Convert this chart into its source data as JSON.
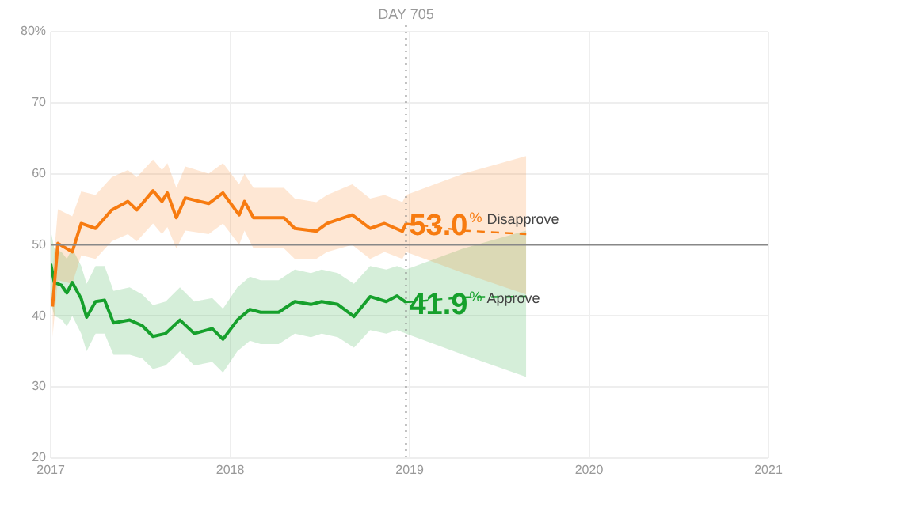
{
  "chart_data": {
    "type": "line",
    "xlim": [
      2017,
      2021
    ],
    "xticks": [
      2017,
      2018,
      2019,
      2020,
      2021
    ],
    "ylim": [
      20,
      80
    ],
    "yticks": [
      20,
      30,
      40,
      50,
      60,
      70,
      {
        "value": 80,
        "label": "80%"
      }
    ],
    "grid": true,
    "legend": false,
    "marker": "none",
    "ref_lines": [
      {
        "axis": "y",
        "value": 50,
        "color": "#888888",
        "line_style": "solid"
      },
      {
        "axis": "x",
        "value": 2018.98,
        "label": "DAY 705",
        "color": "#888888",
        "line_style": "dotted"
      }
    ],
    "annotations": [
      {
        "text": "53.0%",
        "x": 2018.98,
        "y": 53.0
      },
      {
        "text": "41.9%",
        "x": 2018.98,
        "y": 41.9
      }
    ],
    "series": [
      {
        "name": "Disapprove",
        "color": "#f77b10",
        "line_style": "solid",
        "x": [
          2017.01,
          2017.04,
          2017.12,
          2017.17,
          2017.25,
          2017.34,
          2017.43,
          2017.48,
          2017.57,
          2017.62,
          2017.65,
          2017.7,
          2017.75,
          2017.88,
          2017.96,
          2018.05,
          2018.08,
          2018.13,
          2018.21,
          2018.3,
          2018.36,
          2018.48,
          2018.54,
          2018.68,
          2018.78,
          2018.86,
          2018.96,
          2018.98
        ],
        "values": [
          41.3,
          50.2,
          49.0,
          53.0,
          52.3,
          54.9,
          56.1,
          54.9,
          57.6,
          56.1,
          57.3,
          53.8,
          56.6,
          55.8,
          57.3,
          54.2,
          56.1,
          53.8,
          53.8,
          53.8,
          52.3,
          51.9,
          53.0,
          54.2,
          52.3,
          53.0,
          51.9,
          53.0
        ],
        "lower": [
          37,
          45,
          44.5,
          48.5,
          48,
          50.5,
          51.5,
          50.5,
          53,
          51.5,
          52.5,
          49.5,
          52,
          51.5,
          53,
          50,
          52,
          49.5,
          49.5,
          49.5,
          48,
          48,
          49,
          50,
          48,
          49,
          48,
          49
        ],
        "upper": [
          46,
          55,
          54,
          57.5,
          57,
          59.5,
          60.5,
          59.5,
          62,
          60.5,
          61.5,
          58,
          61,
          60,
          61.5,
          58.5,
          60,
          58,
          58,
          58,
          56.5,
          56,
          57,
          58.5,
          56.5,
          57,
          56,
          57
        ]
      },
      {
        "name": "Approve",
        "color": "#16a02c",
        "line_style": "solid",
        "x": [
          2017.0,
          2017.02,
          2017.06,
          2017.09,
          2017.12,
          2017.17,
          2017.2,
          2017.25,
          2017.3,
          2017.35,
          2017.44,
          2017.51,
          2017.57,
          2017.64,
          2017.72,
          2017.8,
          2017.9,
          2017.96,
          2018.04,
          2018.11,
          2018.17,
          2018.27,
          2018.36,
          2018.45,
          2018.51,
          2018.6,
          2018.69,
          2018.78,
          2018.87,
          2018.93,
          2018.98
        ],
        "values": [
          47.3,
          44.7,
          44.3,
          43.2,
          44.7,
          42.4,
          39.8,
          42.0,
          42.2,
          39.0,
          39.4,
          38.6,
          37.1,
          37.5,
          39.4,
          37.5,
          38.2,
          36.7,
          39.4,
          40.9,
          40.5,
          40.5,
          42.0,
          41.6,
          42.0,
          41.6,
          39.9,
          42.7,
          42.0,
          42.8,
          41.9
        ],
        "lower": [
          42,
          40,
          39.5,
          38.5,
          40,
          37.5,
          35,
          37.5,
          37.5,
          34.5,
          34.5,
          34,
          32.5,
          33,
          35,
          33,
          33.5,
          32,
          35,
          36.5,
          36,
          36,
          37.5,
          37,
          37.5,
          37,
          35.5,
          38,
          37.5,
          38,
          37.5
        ],
        "upper": [
          52,
          49.5,
          49,
          48,
          49.5,
          47,
          44.5,
          47,
          47,
          43.5,
          44,
          43,
          41.5,
          42,
          44,
          42,
          42.5,
          41,
          44,
          45.5,
          45,
          45,
          46.5,
          46,
          46.5,
          46,
          44.5,
          47,
          46.5,
          47,
          46.5
        ]
      },
      {
        "color": "#f77b10",
        "line_style": "dashed",
        "x": [
          2018.98,
          2019.3,
          2019.65
        ],
        "values": [
          53.0,
          52.0,
          51.5
        ],
        "lower": [
          49,
          46,
          43
        ],
        "upper": [
          57,
          60,
          62.5
        ]
      },
      {
        "color": "#16a02c",
        "line_style": "dashed",
        "x": [
          2018.98,
          2019.3,
          2019.65
        ],
        "values": [
          41.9,
          42.6,
          42.7
        ],
        "lower": [
          37.5,
          34.5,
          31.4
        ],
        "upper": [
          46.5,
          49.5,
          52
        ]
      }
    ]
  }
}
